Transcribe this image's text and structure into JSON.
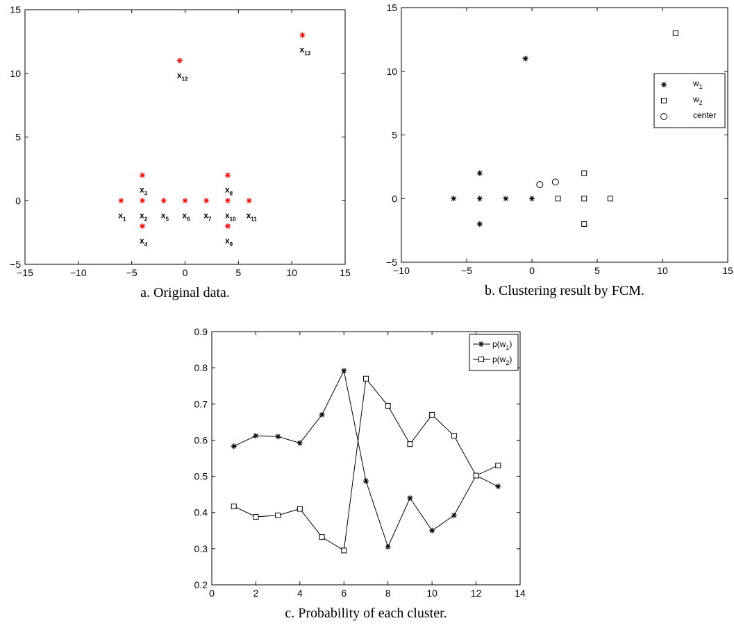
{
  "chart_data": [
    {
      "type": "scatter",
      "caption": "a. Original data.",
      "xlim": [
        -15,
        15
      ],
      "ylim": [
        -5,
        15
      ],
      "xticks": [
        -15,
        -10,
        -5,
        0,
        5,
        10,
        15
      ],
      "yticks": [
        -5,
        0,
        5,
        10,
        15
      ],
      "marker_color": "#ff0000",
      "points": [
        {
          "label": "x",
          "sub": "1",
          "x": -6,
          "y": 0
        },
        {
          "label": "x",
          "sub": "2",
          "x": -4,
          "y": 0
        },
        {
          "label": "x",
          "sub": "3",
          "x": -4,
          "y": 2
        },
        {
          "label": "x",
          "sub": "4",
          "x": -4,
          "y": -2
        },
        {
          "label": "x",
          "sub": "5",
          "x": -2,
          "y": 0
        },
        {
          "label": "x",
          "sub": "6",
          "x": 0,
          "y": 0
        },
        {
          "label": "x",
          "sub": "7",
          "x": 2,
          "y": 0
        },
        {
          "label": "x",
          "sub": "8",
          "x": 4,
          "y": 2
        },
        {
          "label": "x",
          "sub": "9",
          "x": 4,
          "y": -2
        },
        {
          "label": "x",
          "sub": "10",
          "x": 4,
          "y": 0
        },
        {
          "label": "x",
          "sub": "11",
          "x": 6,
          "y": 0
        },
        {
          "label": "x",
          "sub": "12",
          "x": -0.5,
          "y": 11
        },
        {
          "label": "x",
          "sub": "13",
          "x": 11,
          "y": 13
        }
      ]
    },
    {
      "type": "scatter",
      "caption": "b. Clustering result by FCM.",
      "xlim": [
        -10,
        15
      ],
      "ylim": [
        -5,
        15
      ],
      "xticks": [
        -10,
        -5,
        0,
        5,
        10,
        15
      ],
      "yticks": [
        -5,
        0,
        5,
        10,
        15
      ],
      "legend_position": "upper-right",
      "series": [
        {
          "name": "w",
          "sub": "1",
          "marker": "star",
          "x": [
            -6,
            -4,
            -4,
            -4,
            -2,
            0,
            -0.5
          ],
          "y": [
            0,
            0,
            2,
            -2,
            0,
            0,
            11
          ]
        },
        {
          "name": "w",
          "sub": "2",
          "marker": "square",
          "x": [
            2,
            4,
            4,
            4,
            6,
            11
          ],
          "y": [
            0,
            2,
            -2,
            0,
            0,
            13
          ]
        },
        {
          "name": "center",
          "sub": "",
          "marker": "circle",
          "x": [
            0.6,
            1.8
          ],
          "y": [
            1.1,
            1.3
          ]
        }
      ]
    },
    {
      "type": "line",
      "caption": "c. Probability of each cluster.",
      "xlim": [
        0,
        14
      ],
      "ylim": [
        0.2,
        0.9
      ],
      "xticks": [
        0,
        2,
        4,
        6,
        8,
        10,
        12,
        14
      ],
      "yticks": [
        0.2,
        0.3,
        0.4,
        0.5,
        0.6,
        0.7,
        0.8,
        0.9
      ],
      "legend_position": "upper-right",
      "x": [
        1,
        2,
        3,
        4,
        5,
        6,
        7,
        8,
        9,
        10,
        11,
        12,
        13
      ],
      "series": [
        {
          "name": "p(w",
          "sub": "1",
          "suffix": ")",
          "marker": "star",
          "values": [
            0.583,
            0.612,
            0.61,
            0.592,
            0.67,
            0.792,
            0.487,
            0.305,
            0.44,
            0.35,
            0.392,
            0.502,
            0.472
          ]
        },
        {
          "name": "p(w",
          "sub": "2",
          "suffix": ")",
          "marker": "square",
          "values": [
            0.417,
            0.388,
            0.392,
            0.41,
            0.332,
            0.295,
            0.77,
            0.695,
            0.589,
            0.67,
            0.612,
            0.502,
            0.53
          ]
        }
      ]
    }
  ]
}
